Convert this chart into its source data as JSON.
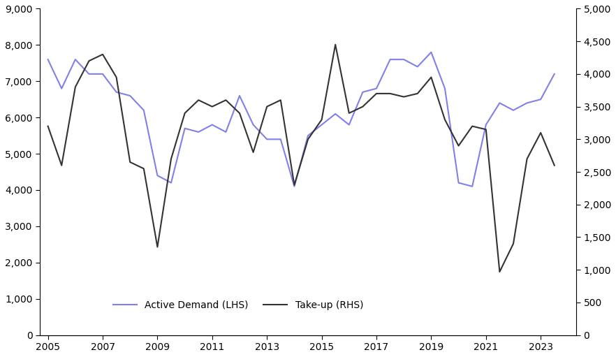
{
  "active_demand": {
    "label": "Active Demand (LHS)",
    "color": "#8080e8",
    "x": [
      2005.0,
      2005.5,
      2006.0,
      2006.5,
      2007.0,
      2007.5,
      2008.0,
      2008.5,
      2009.0,
      2009.5,
      2010.0,
      2010.5,
      2011.0,
      2011.5,
      2012.0,
      2012.5,
      2013.0,
      2013.5,
      2014.0,
      2014.5,
      2015.0,
      2015.5,
      2016.0,
      2016.5,
      2017.0,
      2017.5,
      2018.0,
      2018.5,
      2019.0,
      2019.5,
      2020.0,
      2020.5,
      2021.0,
      2021.5,
      2022.0,
      2022.5,
      2023.0,
      2023.5
    ],
    "y": [
      7600,
      6800,
      7600,
      7200,
      7200,
      6700,
      6600,
      6200,
      4400,
      4200,
      5700,
      5600,
      5800,
      5600,
      6600,
      5800,
      5400,
      5400,
      4100,
      5500,
      5800,
      6100,
      5800,
      6700,
      6800,
      7600,
      7600,
      7400,
      7800,
      6800,
      4200,
      4100,
      5800,
      6400,
      6200,
      6400,
      6500,
      7200
    ]
  },
  "takeup": {
    "label": "Take-up (RHS)",
    "color": "#333333",
    "x": [
      2005.0,
      2005.5,
      2006.0,
      2006.5,
      2007.0,
      2007.5,
      2008.0,
      2008.5,
      2009.0,
      2009.5,
      2010.0,
      2010.5,
      2011.0,
      2011.5,
      2012.0,
      2012.5,
      2013.0,
      2013.5,
      2014.0,
      2014.5,
      2015.0,
      2015.5,
      2016.0,
      2016.5,
      2017.0,
      2017.5,
      2018.0,
      2018.5,
      2019.0,
      2019.5,
      2020.0,
      2020.5,
      2021.0,
      2021.5,
      2022.0,
      2022.5,
      2023.0,
      2023.5
    ],
    "y_rhs": [
      3200,
      2600,
      3800,
      4200,
      4300,
      3950,
      2650,
      2550,
      1350,
      2700,
      3400,
      3600,
      3500,
      3600,
      3400,
      2800,
      3500,
      3600,
      2300,
      3000,
      3300,
      4450,
      3400,
      3500,
      3700,
      3700,
      3650,
      3700,
      3950,
      3300,
      2900,
      3200,
      3150,
      970,
      1400,
      2700,
      3100,
      2600
    ]
  },
  "lhs_ylim": [
    0,
    9000
  ],
  "rhs_ylim": [
    0,
    5000
  ],
  "lhs_yticks": [
    0,
    1000,
    2000,
    3000,
    4000,
    5000,
    6000,
    7000,
    8000,
    9000
  ],
  "rhs_yticks": [
    0,
    500,
    1000,
    1500,
    2000,
    2500,
    3000,
    3500,
    4000,
    4500,
    5000
  ],
  "xticks": [
    2005,
    2007,
    2009,
    2011,
    2013,
    2015,
    2017,
    2019,
    2021,
    2023
  ],
  "xlim": [
    2004.7,
    2024.3
  ],
  "background_color": "#ffffff",
  "legend_loc": "lower center",
  "linewidth": 1.5
}
